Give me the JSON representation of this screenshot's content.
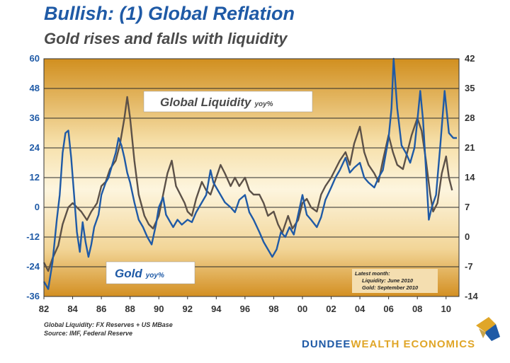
{
  "header": {
    "title": "Bullish: (1) Global Reflation",
    "subtitle": "Gold rises and falls with liquidity"
  },
  "chart_data": {
    "type": "line",
    "left_axis": {
      "ticks": [
        60,
        48,
        36,
        24,
        12,
        0,
        -12,
        -24,
        -36
      ],
      "ylim": [
        -36,
        60
      ]
    },
    "right_axis": {
      "ticks": [
        42,
        35,
        28,
        21,
        14,
        7,
        0,
        -7,
        -14
      ],
      "ylim": [
        -14,
        42
      ]
    },
    "x_axis": {
      "ticks": [
        "82",
        "84",
        "86",
        "88",
        "90",
        "92",
        "94",
        "96",
        "98",
        "00",
        "02",
        "04",
        "06",
        "08",
        "10"
      ],
      "xlim": [
        1982,
        2010.9
      ]
    },
    "grid": "horizontal",
    "series": [
      {
        "name": "Gold",
        "label_main": "Gold",
        "label_suffix": "yoy%",
        "axis": "left",
        "color": "#1f5aa6",
        "points": [
          [
            1982.0,
            -30
          ],
          [
            1982.3,
            -33
          ],
          [
            1982.6,
            -22
          ],
          [
            1982.9,
            -5
          ],
          [
            1983.1,
            5
          ],
          [
            1983.3,
            22
          ],
          [
            1983.5,
            30
          ],
          [
            1983.7,
            31
          ],
          [
            1983.9,
            20
          ],
          [
            1984.1,
            5
          ],
          [
            1984.3,
            -10
          ],
          [
            1984.5,
            -18
          ],
          [
            1984.7,
            -6
          ],
          [
            1984.9,
            -14
          ],
          [
            1985.1,
            -20
          ],
          [
            1985.3,
            -15
          ],
          [
            1985.5,
            -8
          ],
          [
            1985.8,
            -3
          ],
          [
            1986.0,
            5
          ],
          [
            1986.3,
            10
          ],
          [
            1986.5,
            12
          ],
          [
            1986.8,
            18
          ],
          [
            1987.0,
            22
          ],
          [
            1987.2,
            28
          ],
          [
            1987.4,
            25
          ],
          [
            1987.6,
            20
          ],
          [
            1987.8,
            14
          ],
          [
            1988.0,
            10
          ],
          [
            1988.3,
            2
          ],
          [
            1988.6,
            -5
          ],
          [
            1988.9,
            -8
          ],
          [
            1989.2,
            -12
          ],
          [
            1989.5,
            -15
          ],
          [
            1989.8,
            -7
          ],
          [
            1990.0,
            0
          ],
          [
            1990.3,
            4
          ],
          [
            1990.5,
            -3
          ],
          [
            1990.8,
            -6
          ],
          [
            1991.0,
            -8
          ],
          [
            1991.3,
            -5
          ],
          [
            1991.6,
            -7
          ],
          [
            1992.0,
            -5
          ],
          [
            1992.3,
            -6
          ],
          [
            1992.6,
            -2
          ],
          [
            1993.0,
            2
          ],
          [
            1993.3,
            5
          ],
          [
            1993.6,
            15
          ],
          [
            1993.8,
            10
          ],
          [
            1994.0,
            8
          ],
          [
            1994.3,
            5
          ],
          [
            1994.6,
            2
          ],
          [
            1995.0,
            0
          ],
          [
            1995.3,
            -2
          ],
          [
            1995.6,
            3
          ],
          [
            1996.0,
            5
          ],
          [
            1996.3,
            -2
          ],
          [
            1996.6,
            -5
          ],
          [
            1997.0,
            -10
          ],
          [
            1997.3,
            -14
          ],
          [
            1997.6,
            -17
          ],
          [
            1997.9,
            -20
          ],
          [
            1998.2,
            -17
          ],
          [
            1998.5,
            -10
          ],
          [
            1998.8,
            -12
          ],
          [
            1999.1,
            -8
          ],
          [
            1999.4,
            -11
          ],
          [
            1999.7,
            -3
          ],
          [
            2000.0,
            5
          ],
          [
            2000.3,
            -3
          ],
          [
            2000.6,
            -5
          ],
          [
            2001.0,
            -8
          ],
          [
            2001.3,
            -4
          ],
          [
            2001.6,
            3
          ],
          [
            2002.0,
            8
          ],
          [
            2002.3,
            12
          ],
          [
            2002.6,
            15
          ],
          [
            2003.0,
            20
          ],
          [
            2003.3,
            14
          ],
          [
            2003.6,
            16
          ],
          [
            2004.0,
            18
          ],
          [
            2004.3,
            12
          ],
          [
            2004.6,
            10
          ],
          [
            2005.0,
            8
          ],
          [
            2005.3,
            12
          ],
          [
            2005.6,
            15
          ],
          [
            2006.0,
            28
          ],
          [
            2006.2,
            40
          ],
          [
            2006.35,
            60
          ],
          [
            2006.6,
            40
          ],
          [
            2006.9,
            25
          ],
          [
            2007.2,
            22
          ],
          [
            2007.5,
            18
          ],
          [
            2007.8,
            24
          ],
          [
            2008.0,
            35
          ],
          [
            2008.2,
            47
          ],
          [
            2008.4,
            35
          ],
          [
            2008.6,
            15
          ],
          [
            2008.8,
            -5
          ],
          [
            2009.0,
            0
          ],
          [
            2009.3,
            5
          ],
          [
            2009.6,
            25
          ],
          [
            2009.9,
            47
          ],
          [
            2010.2,
            30
          ],
          [
            2010.5,
            28
          ],
          [
            2010.75,
            28
          ]
        ]
      },
      {
        "name": "Global Liquidity",
        "label_main": "Global Liquidity",
        "label_suffix": "yoy%",
        "axis": "right",
        "color": "#5c5148",
        "points": [
          [
            1982.0,
            -6
          ],
          [
            1982.3,
            -8
          ],
          [
            1982.6,
            -5
          ],
          [
            1983.0,
            -2
          ],
          [
            1983.3,
            3
          ],
          [
            1983.7,
            7
          ],
          [
            1984.0,
            8
          ],
          [
            1984.3,
            7
          ],
          [
            1984.6,
            6
          ],
          [
            1985.0,
            4
          ],
          [
            1985.3,
            6
          ],
          [
            1985.7,
            8
          ],
          [
            1986.0,
            12
          ],
          [
            1986.3,
            13
          ],
          [
            1986.6,
            16
          ],
          [
            1987.0,
            18
          ],
          [
            1987.3,
            22
          ],
          [
            1987.6,
            28
          ],
          [
            1987.8,
            33
          ],
          [
            1988.0,
            28
          ],
          [
            1988.3,
            18
          ],
          [
            1988.6,
            10
          ],
          [
            1989.0,
            5
          ],
          [
            1989.3,
            3
          ],
          [
            1989.6,
            2
          ],
          [
            1990.0,
            5
          ],
          [
            1990.3,
            10
          ],
          [
            1990.6,
            15
          ],
          [
            1990.9,
            18
          ],
          [
            1991.2,
            12
          ],
          [
            1991.5,
            10
          ],
          [
            1991.8,
            8
          ],
          [
            1992.0,
            6
          ],
          [
            1992.3,
            5
          ],
          [
            1992.6,
            9
          ],
          [
            1993.0,
            13
          ],
          [
            1993.3,
            11
          ],
          [
            1993.6,
            10
          ],
          [
            1994.0,
            14
          ],
          [
            1994.3,
            17
          ],
          [
            1994.6,
            15
          ],
          [
            1995.0,
            12
          ],
          [
            1995.3,
            14
          ],
          [
            1995.6,
            12
          ],
          [
            1996.0,
            14
          ],
          [
            1996.3,
            11
          ],
          [
            1996.6,
            10
          ],
          [
            1997.0,
            10
          ],
          [
            1997.3,
            8
          ],
          [
            1997.6,
            5
          ],
          [
            1998.0,
            6
          ],
          [
            1998.3,
            3
          ],
          [
            1998.6,
            1
          ],
          [
            1999.0,
            5
          ],
          [
            1999.3,
            2
          ],
          [
            1999.7,
            4
          ],
          [
            2000.0,
            8
          ],
          [
            2000.3,
            9
          ],
          [
            2000.6,
            7
          ],
          [
            2001.0,
            6
          ],
          [
            2001.3,
            10
          ],
          [
            2001.6,
            12
          ],
          [
            2002.0,
            14
          ],
          [
            2002.3,
            16
          ],
          [
            2002.6,
            18
          ],
          [
            2003.0,
            20
          ],
          [
            2003.3,
            17
          ],
          [
            2003.6,
            22
          ],
          [
            2004.0,
            26
          ],
          [
            2004.3,
            20
          ],
          [
            2004.6,
            17
          ],
          [
            2005.0,
            15
          ],
          [
            2005.3,
            13
          ],
          [
            2005.6,
            18
          ],
          [
            2006.0,
            24
          ],
          [
            2006.3,
            20
          ],
          [
            2006.6,
            17
          ],
          [
            2007.0,
            16
          ],
          [
            2007.3,
            20
          ],
          [
            2007.6,
            24
          ],
          [
            2008.0,
            28
          ],
          [
            2008.3,
            25
          ],
          [
            2008.6,
            18
          ],
          [
            2008.9,
            10
          ],
          [
            2009.1,
            6
          ],
          [
            2009.4,
            8
          ],
          [
            2009.7,
            15
          ],
          [
            2010.0,
            19
          ],
          [
            2010.2,
            14
          ],
          [
            2010.42,
            11
          ]
        ]
      }
    ],
    "annotation": {
      "heading": "Latest month:",
      "lines": [
        "Liquidity: June 2010",
        "Gold: September 2010"
      ]
    }
  },
  "footer": {
    "source_line1": "Global Liquidity: FX Reserves + US MBase",
    "source_line2": "Source: IMF, Federal Reserve",
    "brand_main": "DUNDEE",
    "brand_accent": "WEALTH ECONOMICS"
  },
  "colors": {
    "title": "#1f5aa6",
    "plot_edge": "#d18f1f",
    "plot_center": "#fdf5de",
    "logo_gold": "#e0a628",
    "logo_blue": "#1f5aa6"
  }
}
